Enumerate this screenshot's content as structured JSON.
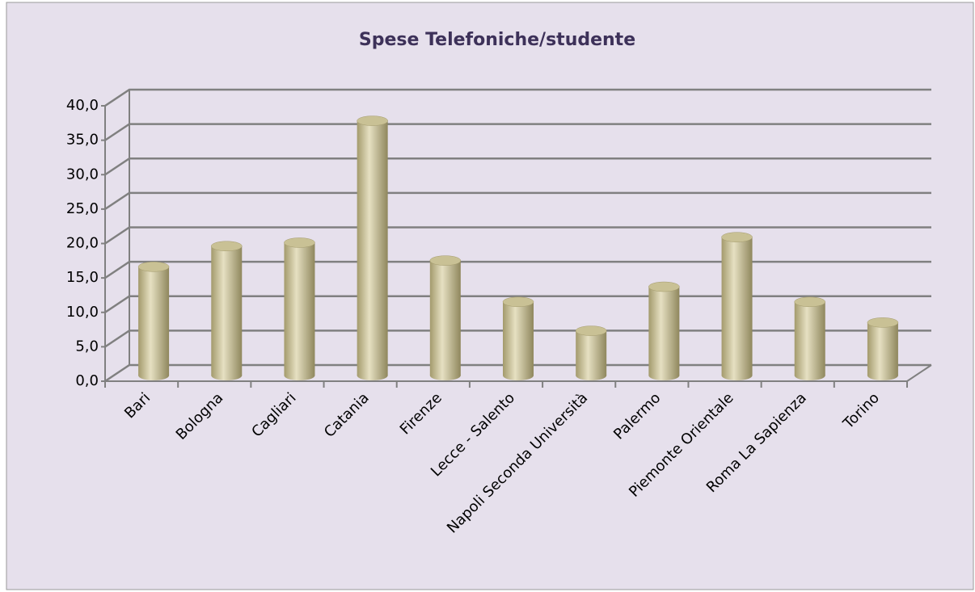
{
  "chart_data": {
    "type": "bar3d",
    "title": "Spese Telefoniche/studente",
    "categories": [
      "Bari",
      "Bologna",
      "Cagliari",
      "Catania",
      "Firenze",
      "Lecce - Salento",
      "Napoli Seconda Università",
      "Palermo",
      "Piemonte Orientale",
      "Roma La Sapienza",
      "Torino"
    ],
    "values": [
      15.8,
      18.8,
      19.3,
      37.0,
      16.7,
      10.7,
      6.5,
      12.9,
      20.1,
      10.7,
      7.7
    ],
    "color": "#c9c195",
    "ylim": [
      0,
      40
    ],
    "yticks": [
      {
        "value": 0,
        "label": "0,0"
      },
      {
        "value": 5,
        "label": "5,0"
      },
      {
        "value": 10,
        "label": "10,0"
      },
      {
        "value": 15,
        "label": "15,0"
      },
      {
        "value": 20,
        "label": "20,0"
      },
      {
        "value": 25,
        "label": "25,0"
      },
      {
        "value": 30,
        "label": "30,0"
      },
      {
        "value": 35,
        "label": "35,0"
      },
      {
        "value": 40,
        "label": "40,0"
      }
    ],
    "grid": true
  }
}
